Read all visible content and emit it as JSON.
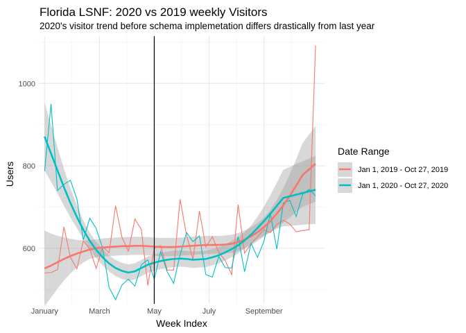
{
  "chart_data": {
    "type": "line",
    "title": "Florida LSNF: 2020 vs 2019 weekly Visitors",
    "subtitle": "2020's visitor trend before schema implemetation differs drastically from last year",
    "xlabel": "Week Index",
    "ylabel": "Users",
    "x_ticks": [
      "January",
      "March",
      "May",
      "July",
      "September"
    ],
    "x_tick_weeks": [
      1,
      9.5,
      18,
      26.5,
      35
    ],
    "xlim": [
      0,
      44.5
    ],
    "ylim": [
      465,
      1115
    ],
    "y_ticks": [
      600,
      800,
      1000
    ],
    "vline_week": 18,
    "grid": true,
    "legend": {
      "title": "Date Range",
      "placement": "right"
    },
    "series": [
      {
        "name": "Jan 1, 2019 - Oct 27, 2019",
        "color": "#f8766d",
        "x": [
          1,
          2,
          3,
          4,
          5,
          6,
          7,
          8,
          9,
          10,
          11,
          12,
          13,
          14,
          15,
          16,
          17,
          18,
          19,
          20,
          21,
          22,
          23,
          24,
          25,
          26,
          27,
          28,
          29,
          30,
          31,
          32,
          33,
          34,
          35,
          36,
          37,
          38,
          39,
          40,
          41,
          42,
          43
        ],
        "values": [
          540,
          541,
          548,
          652,
          578,
          550,
          618,
          598,
          551,
          604,
          589,
          703,
          626,
          593,
          671,
          645,
          510,
          600,
          606,
          547,
          547,
          719,
          632,
          573,
          690,
          603,
          628,
          590,
          570,
          536,
          706,
          588,
          611,
          628,
          645,
          638,
          658,
          668,
          659,
          640,
          643,
          645,
          1092
        ],
        "smooth": [
          551,
          558,
          566,
          574,
          581,
          587,
          592,
          597,
          600,
          602,
          603,
          604,
          605,
          605,
          606,
          606,
          605,
          604,
          603,
          603,
          603,
          604,
          605,
          606,
          607,
          608,
          608,
          608,
          609,
          611,
          615,
          621,
          629,
          639,
          651,
          666,
          684,
          704,
          727,
          752,
          778,
          805
        ],
        "smooth_x": [
          1,
          2,
          3,
          4,
          5,
          6,
          7,
          8,
          9,
          10,
          11,
          12,
          13,
          14,
          15,
          16,
          17,
          18,
          19,
          20,
          21,
          22,
          23,
          24,
          25,
          26,
          27,
          28,
          29,
          30,
          31,
          32,
          33,
          34,
          35,
          36,
          37,
          38,
          39,
          40,
          41,
          43
        ]
      },
      {
        "name": "Jan 1, 2020 - Oct 27, 2020",
        "color": "#00bfc4",
        "x": [
          1,
          2,
          3,
          4,
          5,
          6,
          7,
          8,
          9,
          10,
          11,
          12,
          13,
          14,
          15,
          16,
          17,
          18,
          19,
          20,
          21,
          22,
          23,
          24,
          25,
          26,
          27,
          28,
          29,
          30,
          31,
          32,
          33,
          34,
          35,
          36,
          37,
          38,
          39,
          40,
          41,
          42,
          43
        ],
        "values": [
          787,
          950,
          740,
          755,
          765,
          720,
          620,
          673,
          648,
          600,
          505,
          475,
          511,
          525,
          508,
          560,
          572,
          525,
          592,
          543,
          515,
          584,
          638,
          616,
          630,
          536,
          530,
          580,
          553,
          552,
          628,
          543,
          612,
          578,
          617,
          684,
          598,
          710,
          716,
          677,
          731,
          743,
          727
        ],
        "smooth": [
          871,
          830,
          789,
          748,
          710,
          676,
          645,
          618,
          596,
          578,
          563,
          552,
          545,
          541,
          544,
          552,
          560,
          565,
          569,
          572,
          574,
          575,
          574,
          572,
          573,
          574,
          578,
          583,
          590,
          598,
          607,
          619,
          633,
          649,
          666,
          684,
          703,
          722,
          742
        ],
        "smooth_x": [
          1,
          2,
          3,
          4,
          5,
          6,
          7,
          8,
          9,
          10,
          11,
          12,
          13,
          14,
          15,
          16,
          17,
          18,
          19,
          20,
          21,
          22,
          23,
          24,
          25,
          26,
          27,
          28,
          29,
          30,
          31,
          32,
          33,
          34,
          35,
          36,
          37,
          38,
          43
        ]
      }
    ]
  }
}
